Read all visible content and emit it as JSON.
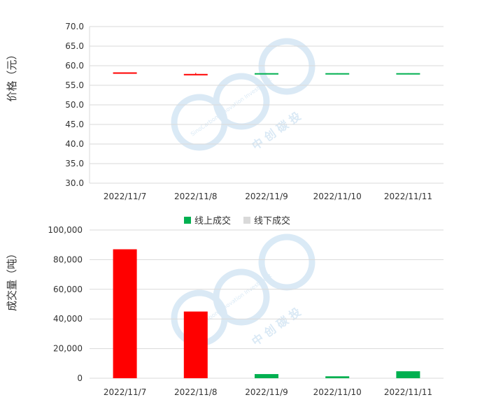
{
  "chart_data": [
    {
      "type": "candlestick",
      "ylabel": "价格（元）",
      "categories": [
        "2022/11/7",
        "2022/11/8",
        "2022/11/9",
        "2022/11/10",
        "2022/11/11"
      ],
      "ylim": [
        30.0,
        70.0
      ],
      "yticks": [
        "30.0",
        "35.0",
        "40.0",
        "45.0",
        "50.0",
        "55.0",
        "60.0",
        "65.0",
        "70.0"
      ],
      "tick_values": [
        30,
        35,
        40,
        45,
        50,
        55,
        60,
        65,
        70
      ],
      "grid": true,
      "candles": [
        {
          "open": 58.3,
          "close": 58.1,
          "high": 58.3,
          "low": 58.1,
          "color": "#ff0000"
        },
        {
          "open": 57.9,
          "close": 57.7,
          "high": 58.2,
          "low": 57.7,
          "color": "#ff0000"
        },
        {
          "open": 58.0,
          "close": 58.1,
          "high": 58.1,
          "low": 58.0,
          "color": "#00b050"
        },
        {
          "open": 58.0,
          "close": 58.1,
          "high": 58.1,
          "low": 58.0,
          "color": "#00b050"
        },
        {
          "open": 58.0,
          "close": 58.1,
          "high": 58.1,
          "low": 58.0,
          "color": "#00b050"
        }
      ]
    },
    {
      "type": "bar",
      "ylabel": "成交量（吨）",
      "categories": [
        "2022/11/7",
        "2022/11/8",
        "2022/11/9",
        "2022/11/10",
        "2022/11/11"
      ],
      "ylim": [
        0,
        100000
      ],
      "yticks": [
        "0",
        "20,000",
        "40,000",
        "60,000",
        "80,000",
        "100,000"
      ],
      "tick_values": [
        0,
        20000,
        40000,
        60000,
        80000,
        100000
      ],
      "grid": true,
      "legend": {
        "position": "top",
        "entries": [
          {
            "name": "线上成交",
            "color": "#00b050"
          },
          {
            "name": "线下成交",
            "color": "#d9d9d9"
          }
        ]
      },
      "values": [
        87000,
        45000,
        2800,
        1300,
        4700
      ],
      "bar_colors": [
        "#ff0000",
        "#ff0000",
        "#00b050",
        "#00b050",
        "#00b050"
      ]
    }
  ],
  "watermark": {
    "text_cn": "中 创 碳 投",
    "text_en": "SinoCarbon Innovation Investment",
    "color": "#bcd8ee"
  }
}
